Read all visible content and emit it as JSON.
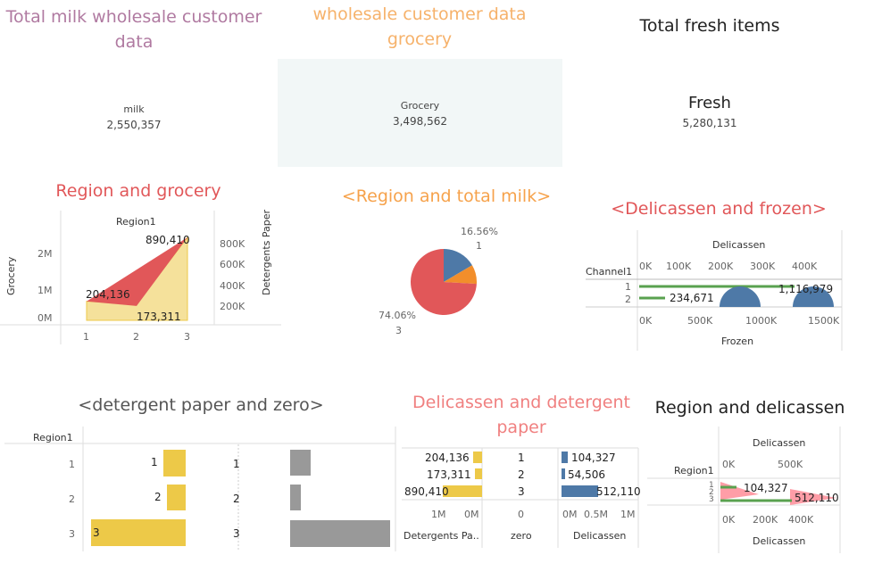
{
  "kpi": {
    "milk": {
      "title": "Total milk wholesale customer data",
      "label": "milk",
      "value": "2,550,357",
      "color": "#b07aa1"
    },
    "grocery": {
      "title": "wholesale customer data grocery",
      "label": "Grocery",
      "value": "3,498,562",
      "color": "#f6b26b",
      "bg": "#f2f7f7"
    },
    "fresh": {
      "title": "Total fresh items",
      "label": "Fresh",
      "value": "5,280,131"
    }
  },
  "colors": {
    "red": "#e15759",
    "yellow": "#edc948",
    "blue": "#4e79a7",
    "orange": "#f28e2b",
    "green": "#59a14f",
    "gray": "#999999",
    "pink": "#ff9da7",
    "title_red": "#e15759",
    "title_orange": "#f6a24b"
  },
  "chart_data": [
    {
      "type": "area",
      "name": "Region and grocery",
      "title": "Region and grocery",
      "header": "Region1",
      "ylabel_left": "Grocery",
      "ylabel_right": "Detergents Paper",
      "x": [
        "1",
        "2",
        "3"
      ],
      "left_ticks": [
        "2M",
        "1M",
        "0M"
      ],
      "right_ticks": [
        "800K",
        "600K",
        "400K",
        "200K"
      ],
      "series": [
        {
          "name": "Grocery",
          "values": [
            570000,
            433000,
            2500000
          ]
        },
        {
          "name": "Detergents Paper",
          "values": [
            204136,
            173311,
            890410
          ]
        }
      ],
      "labels": [
        "204,136",
        "173,311",
        "890,410"
      ]
    },
    {
      "type": "pie",
      "name": "Region and total milk",
      "title": "<Region and total milk>",
      "slices": [
        {
          "label": "1",
          "percent": 16.56
        },
        {
          "label": "2",
          "percent": 9.38
        },
        {
          "label": "3",
          "percent": 74.06
        }
      ],
      "label_top": "16.56%",
      "label_top_sub": "1",
      "label_bottom": "74.06%",
      "label_bottom_sub": "3"
    },
    {
      "type": "scatter",
      "name": "Delicassen and frozen",
      "title": "<Delicassen and frozen>",
      "header": "Channel1",
      "top_axis_title": "Delicassen",
      "bottom_axis_title": "Frozen",
      "rows": [
        "1",
        "2"
      ],
      "top_ticks": [
        "0K",
        "100K",
        "200K",
        "300K",
        "400K"
      ],
      "bottom_ticks": [
        "0K",
        "500K",
        "1000K",
        "1500K"
      ],
      "labels": [
        "1,116,979",
        "234,671"
      ]
    },
    {
      "type": "bar",
      "name": "detergent paper and zero",
      "title": "<detergent paper and zero>",
      "header": "Region1",
      "categories": [
        "1",
        "2",
        "3"
      ],
      "values": [
        1,
        2,
        3
      ],
      "gray_values": [
        1,
        1,
        5
      ],
      "mid_labels": [
        "1",
        "2",
        "3"
      ]
    },
    {
      "type": "bar",
      "name": "Delicassen and detergent paper",
      "title": "Delicassen and detergent paper",
      "categories": [
        "1",
        "2",
        "3"
      ],
      "detergent_labels": [
        "204,136",
        "173,311",
        "890,410"
      ],
      "detergent_values": [
        204136,
        173311,
        890410
      ],
      "delicassen_labels": [
        "104,327",
        "54,506",
        "512,110"
      ],
      "delicassen_values": [
        104327,
        54506,
        512110
      ],
      "left_ticks": [
        "1M",
        "0M"
      ],
      "mid_tick": "0",
      "right_ticks": [
        "0M",
        "0.5M",
        "1M"
      ],
      "left_title": "Detergents Pa..",
      "mid_title": "zero",
      "right_title": "Delicassen"
    },
    {
      "type": "area",
      "name": "Region and delicassen",
      "title": "Region and delicassen",
      "header": "Region1",
      "top_axis_title": "Delicassen",
      "bottom_axis_title": "Delicassen",
      "rows": [
        "1",
        "2",
        "3"
      ],
      "top_ticks": [
        "0K",
        "500K"
      ],
      "bottom_ticks": [
        "0K",
        "200K",
        "400K"
      ],
      "labels": [
        "104,327",
        "512,110"
      ]
    }
  ]
}
